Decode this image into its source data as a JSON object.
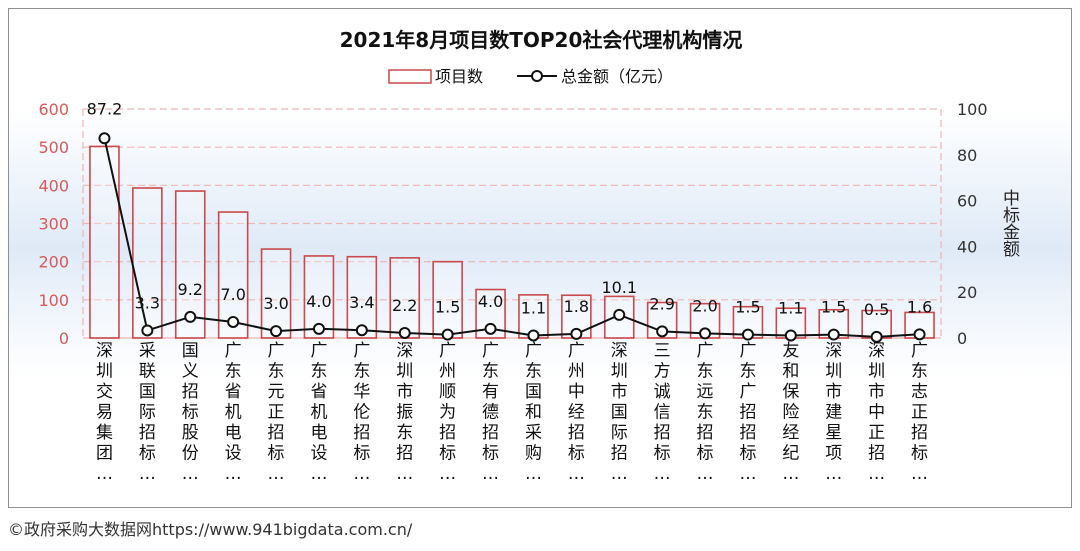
{
  "chart_data": {
    "type": "bar",
    "title": "2021年8月项目数TOP20社会代理机构情况",
    "legend_position": "top-center",
    "legend": [
      "项目数",
      "总金额（亿元）"
    ],
    "categories": [
      "深圳交易集团…",
      "采联国际招标…",
      "国义招标股份…",
      "广东省机电设…",
      "广东元正招标…",
      "广东省机电设…",
      "广东华伦招标…",
      "深圳市振东招…",
      "广州顺为招标…",
      "广东有德招标…",
      "广东国和采购…",
      "广州中经招标…",
      "深圳市国际招…",
      "三方诚信招标…",
      "广东远东招标…",
      "广东广招招标…",
      "友和保险经纪…",
      "深圳市建星项…",
      "深圳市中正招…",
      "广东志正招标…"
    ],
    "series": [
      {
        "name": "项目数",
        "type": "bar",
        "axis": "left",
        "color": "#c9494c",
        "values": [
          502,
          393,
          385,
          330,
          233,
          215,
          213,
          210,
          200,
          127,
          113,
          112,
          109,
          93,
          90,
          82,
          78,
          74,
          72,
          67
        ]
      },
      {
        "name": "总金额（亿元）",
        "type": "line",
        "axis": "right",
        "color": "#111111",
        "values": [
          87.2,
          3.3,
          9.2,
          7.0,
          3.0,
          4.0,
          3.4,
          2.2,
          1.5,
          4.0,
          1.1,
          1.8,
          10.1,
          2.9,
          2.0,
          1.5,
          1.1,
          1.5,
          0.5,
          1.6
        ],
        "labels": [
          "87.2",
          "3.3",
          "9.2",
          "7.0",
          "3.0",
          "4.0",
          "3.4",
          "2.2",
          "1.5",
          "4.0",
          "1.1",
          "1.8",
          "10.1",
          "2.9",
          "2.0",
          "1.5",
          "1.1",
          "1.5",
          "0.5",
          "1.6"
        ]
      }
    ],
    "y_left": {
      "min": 0,
      "max": 600,
      "ticks": [
        "0",
        "100",
        "200",
        "300",
        "400",
        "500",
        "600"
      ],
      "color": "#d65a5a"
    },
    "y_right": {
      "min": 0,
      "max": 100,
      "ticks": [
        "0",
        "20",
        "40",
        "60",
        "80",
        "100"
      ],
      "label": "中标金额",
      "color": "#333333"
    },
    "grid": true
  },
  "footer": {
    "source": "©政府采购大数据网https://www.941bigdata.com.cn/"
  }
}
